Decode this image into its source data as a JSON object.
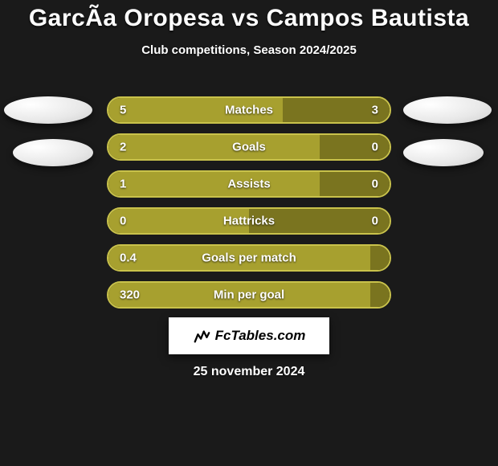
{
  "title": "GarcÃ­a Oropesa vs Campos Bautista",
  "subtitle": "Club competitions, Season 2024/2025",
  "date": "25 november 2024",
  "brand_text": "FcTables.com",
  "colors": {
    "background": "#1a1a1a",
    "bar_primary": "#a7a02f",
    "bar_secondary": "#7a741f",
    "bar_border": "#c9c24b",
    "text": "#ffffff",
    "avatar": "#eeeeee"
  },
  "bars": [
    {
      "label": "Matches",
      "left": "5",
      "right": "3",
      "left_pct": 62,
      "right_pct": 38
    },
    {
      "label": "Goals",
      "left": "2",
      "right": "0",
      "left_pct": 75,
      "right_pct": 25
    },
    {
      "label": "Assists",
      "left": "1",
      "right": "0",
      "left_pct": 75,
      "right_pct": 25
    },
    {
      "label": "Hattricks",
      "left": "0",
      "right": "0",
      "left_pct": 50,
      "right_pct": 50
    },
    {
      "label": "Goals per match",
      "left": "0.4",
      "right": "",
      "left_pct": 93,
      "right_pct": 7
    },
    {
      "label": "Min per goal",
      "left": "320",
      "right": "",
      "left_pct": 93,
      "right_pct": 7
    }
  ]
}
